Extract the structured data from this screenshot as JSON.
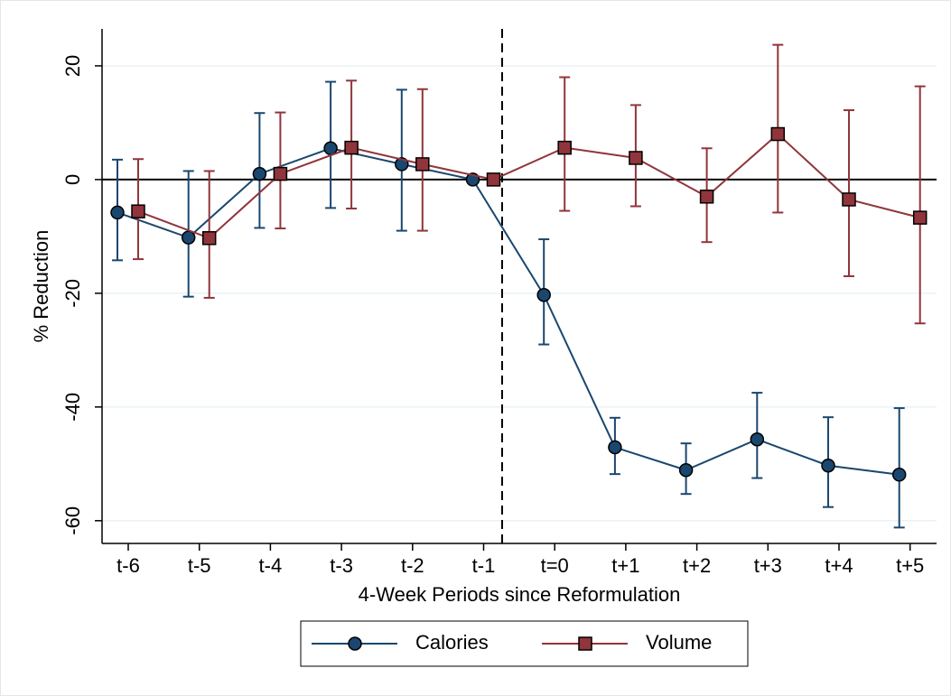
{
  "chart_data": {
    "type": "line",
    "ylabel": "% Reduction",
    "xlabel": "4-Week Periods since Reformulation",
    "categories": [
      "t-6",
      "t-5",
      "t-4",
      "t-3",
      "t-2",
      "t-1",
      "t=0",
      "t+1",
      "t+2",
      "t+3",
      "t+4",
      "t+5"
    ],
    "series": [
      {
        "name": "Calories",
        "color": "#1a476f",
        "marker": "circle",
        "values": [
          -5.8,
          -10.2,
          1.0,
          5.5,
          2.7,
          0,
          -20.3,
          -47.1,
          -51.1,
          -45.7,
          -50.3,
          -51.9
        ],
        "lower": [
          -14.2,
          -20.6,
          -8.5,
          -5.0,
          -9.0,
          null,
          -29.0,
          -51.8,
          -55.3,
          -52.5,
          -57.6,
          -61.2
        ],
        "upper": [
          3.5,
          1.5,
          11.7,
          17.2,
          15.8,
          null,
          -10.5,
          -41.9,
          -46.4,
          -37.5,
          -41.8,
          -40.2
        ]
      },
      {
        "name": "Volume",
        "color": "#90353b",
        "marker": "square",
        "values": [
          -5.6,
          -10.3,
          1.0,
          5.6,
          2.7,
          0,
          5.6,
          3.8,
          -3.0,
          8.0,
          -3.5,
          -6.7
        ],
        "lower": [
          -14.0,
          -20.8,
          -8.6,
          -5.1,
          -9.0,
          null,
          -5.5,
          -4.7,
          -11.0,
          -5.8,
          -17.0,
          -25.3
        ],
        "upper": [
          3.6,
          1.5,
          11.8,
          17.4,
          15.9,
          null,
          18.0,
          13.1,
          5.5,
          23.7,
          12.2,
          16.4
        ]
      }
    ],
    "ylim": [
      -64,
      26.5
    ],
    "yticks": [
      -60,
      -40,
      -20,
      0,
      20
    ],
    "grid": true
  }
}
